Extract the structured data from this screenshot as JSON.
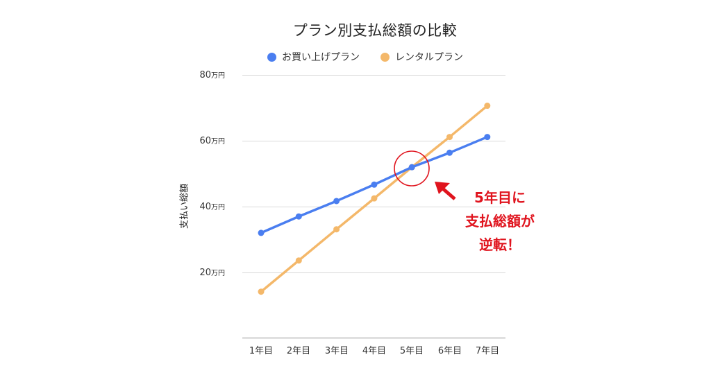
{
  "chart": {
    "title": "プラン別支払総額の比較",
    "legend": [
      {
        "label": "お買い上げプラン",
        "color": "#4a7ef0"
      },
      {
        "label": "レンタルプラン",
        "color": "#f4b86a"
      }
    ],
    "y_axis_title": "支払い総額",
    "y_ticks": [
      {
        "num": "80",
        "unit": "万円"
      },
      {
        "num": "60",
        "unit": "万円"
      },
      {
        "num": "40",
        "unit": "万円"
      },
      {
        "num": "20",
        "unit": "万円"
      }
    ],
    "x_ticks": [
      "1年目",
      "2年目",
      "3年目",
      "4年目",
      "5年目",
      "6年目",
      "7年目"
    ],
    "annotation": {
      "lines": [
        "5年目に",
        "支払総額が",
        "逆転！"
      ],
      "color": "#e0141e"
    }
  },
  "chart_data": {
    "type": "line",
    "title": "プラン別支払総額の比較",
    "xlabel": "",
    "ylabel": "支払い総額",
    "y_unit": "万円",
    "ylim": [
      0,
      80
    ],
    "y_ticks": [
      20,
      40,
      60,
      80
    ],
    "grid": true,
    "legend_position": "top",
    "categories": [
      "1年目",
      "2年目",
      "3年目",
      "4年目",
      "5年目",
      "6年目",
      "7年目"
    ],
    "series": [
      {
        "name": "お買い上げプラン",
        "color": "#4a7ef0",
        "values": [
          32.0,
          37.0,
          41.7,
          46.7,
          52.0,
          56.4,
          61.2
        ]
      },
      {
        "name": "レンタルプラン",
        "color": "#f4b86a",
        "values": [
          14.1,
          23.6,
          33.1,
          42.5,
          52.0,
          61.2,
          70.7
        ]
      }
    ],
    "annotations": [
      {
        "text": "5年目に支払総額が逆転！",
        "target": "5年目",
        "marker": "red circle with arrow"
      }
    ]
  }
}
